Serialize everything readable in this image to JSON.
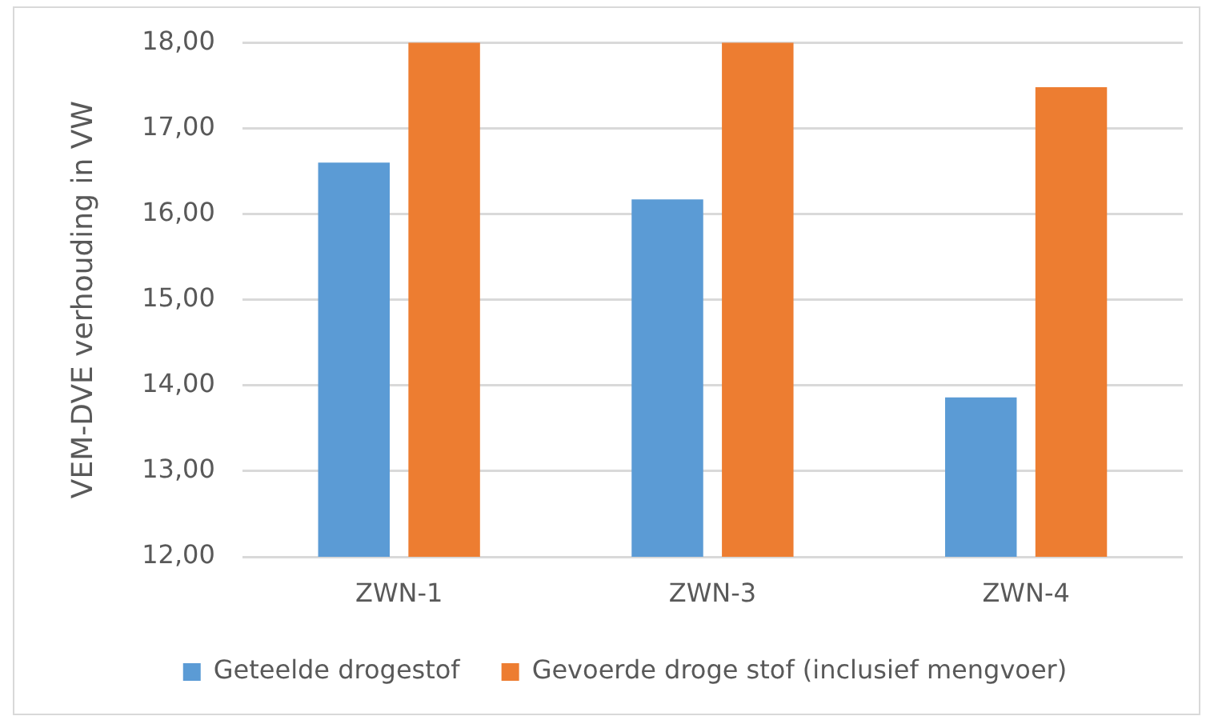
{
  "chart_data": {
    "type": "bar",
    "ylabel": "VEM-DVE verhouding in VW",
    "categories": [
      "ZWN-1",
      "ZWN-3",
      "ZWN-4"
    ],
    "series": [
      {
        "name": "Geteelde drogestof",
        "color": "#5b9bd5",
        "values": [
          16.6,
          16.17,
          13.86
        ]
      },
      {
        "name": "Gevoerde droge stof (inclusief mengvoer)",
        "color": "#ed7d31",
        "values": [
          18.0,
          18.0,
          17.48
        ]
      }
    ],
    "ylim": [
      12,
      18
    ],
    "yticks": [
      {
        "value": 12,
        "label": "12,00"
      },
      {
        "value": 13,
        "label": "13,00"
      },
      {
        "value": 14,
        "label": "14,00"
      },
      {
        "value": 15,
        "label": "15,00"
      },
      {
        "value": 16,
        "label": "16,00"
      },
      {
        "value": 17,
        "label": "17,00"
      },
      {
        "value": 18,
        "label": "18,00"
      }
    ],
    "grid": "y",
    "legend": "bottom"
  }
}
